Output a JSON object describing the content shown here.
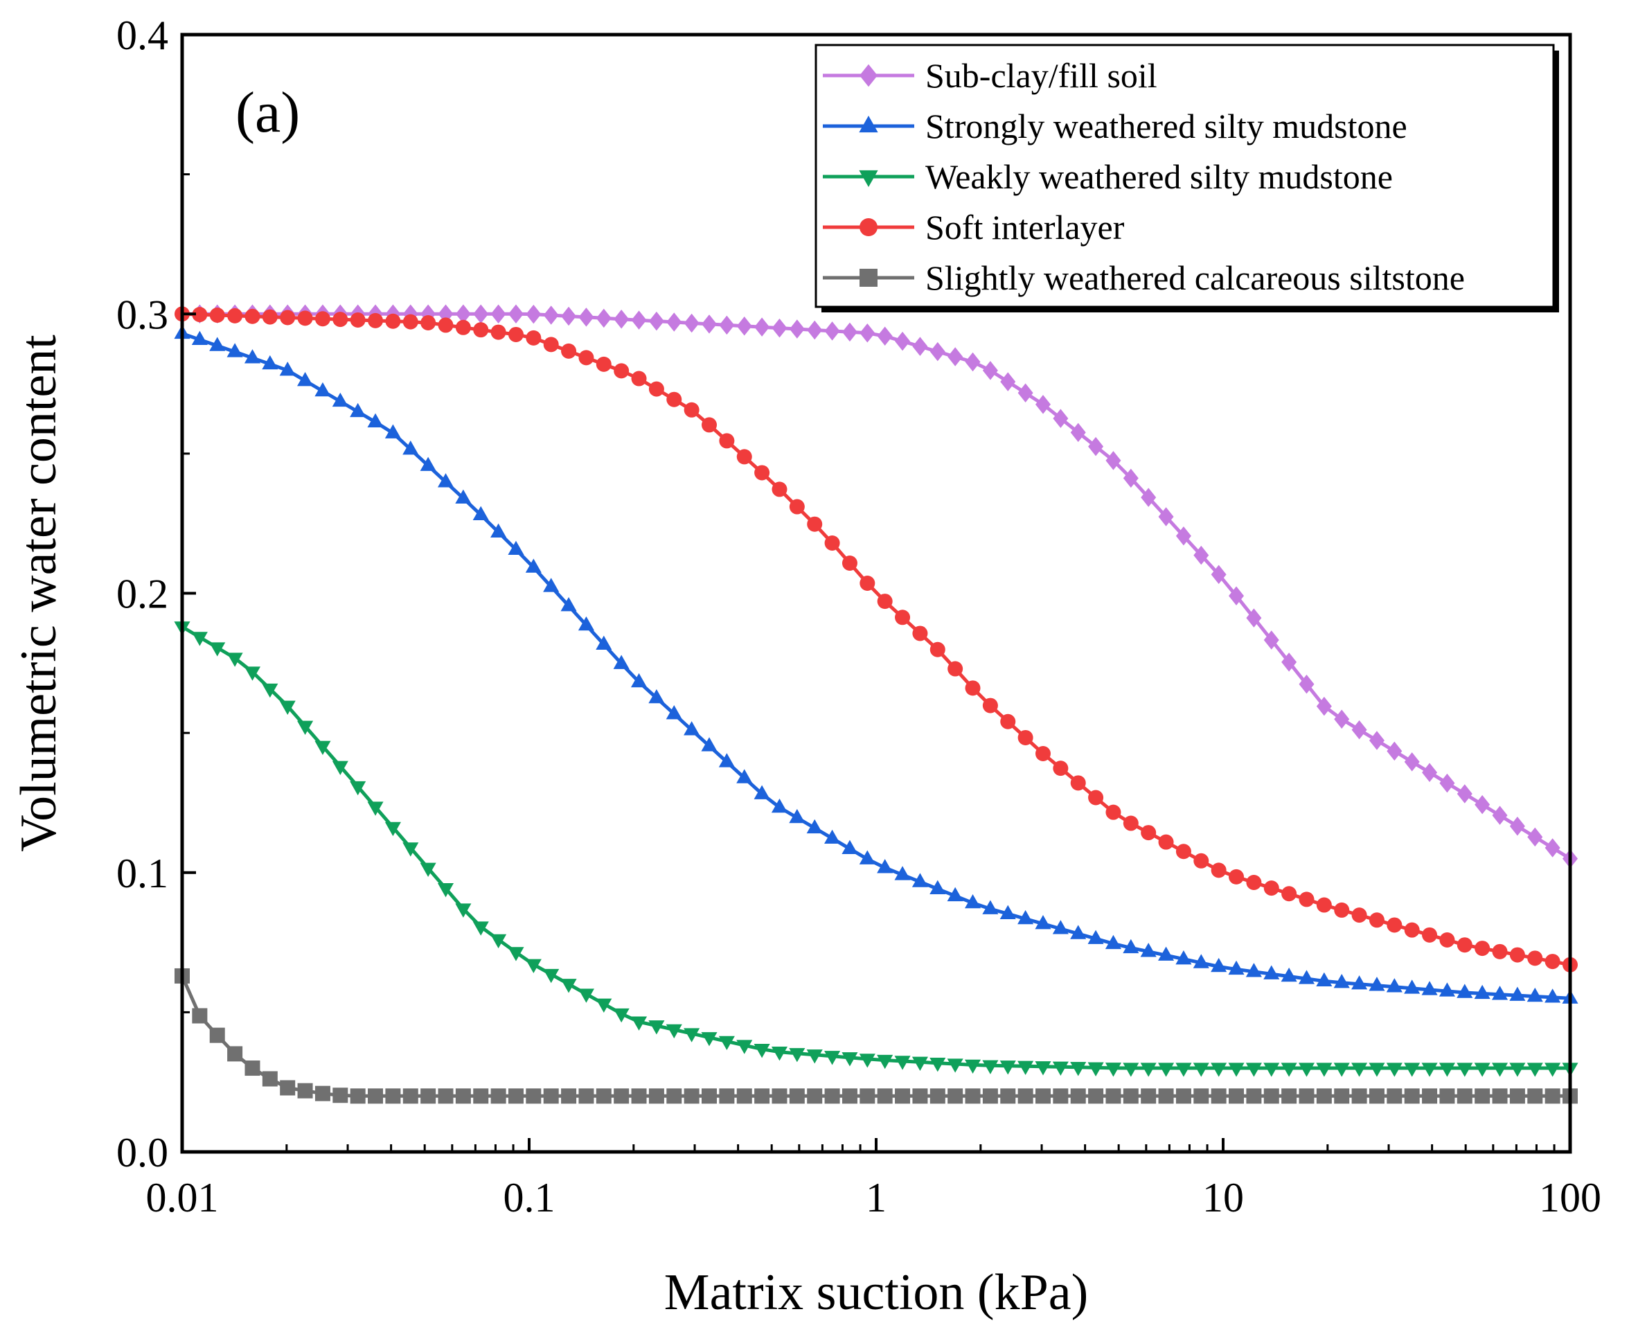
{
  "chart_data": {
    "type": "line",
    "panel_label": "(a)",
    "xlabel": "Matrix suction (kPa)",
    "ylabel": "Volumetric water content",
    "xscale": "log",
    "xlim": [
      0.01,
      100
    ],
    "ylim": [
      0.0,
      0.4
    ],
    "x_ticks": [
      0.01,
      0.1,
      1,
      10,
      100
    ],
    "x_tick_labels": [
      "0.01",
      "0.1",
      "1",
      "10",
      "100"
    ],
    "y_ticks": [
      0.0,
      0.1,
      0.2,
      0.3,
      0.4
    ],
    "y_tick_labels": [
      "0.0",
      "0.1",
      "0.2",
      "0.3",
      "0.4"
    ],
    "legend_position": "top-right",
    "points_per_series": 80,
    "series": [
      {
        "name": "Sub-clay/fill soil",
        "color": "#c57ae0",
        "marker": "diamond",
        "x": [
          0.01,
          0.1,
          1,
          2,
          3,
          5,
          10,
          20,
          50,
          100
        ],
        "values": [
          0.3,
          0.3,
          0.293,
          0.282,
          0.268,
          0.246,
          0.205,
          0.158,
          0.128,
          0.105
        ]
      },
      {
        "name": "Strongly weathered silty mudstone",
        "color": "#1c62db",
        "marker": "triangle-up",
        "x": [
          0.01,
          0.02,
          0.04,
          0.07,
          0.1,
          0.2,
          0.5,
          1,
          2,
          5,
          10,
          20,
          50,
          100
        ],
        "values": [
          0.293,
          0.28,
          0.258,
          0.23,
          0.211,
          0.17,
          0.125,
          0.103,
          0.088,
          0.074,
          0.066,
          0.061,
          0.057,
          0.055
        ]
      },
      {
        "name": "Weakly weathered silty mudstone",
        "color": "#0fa05a",
        "marker": "triangle-down",
        "x": [
          0.01,
          0.015,
          0.02,
          0.03,
          0.05,
          0.07,
          0.1,
          0.2,
          0.5,
          1,
          2,
          5,
          10,
          100
        ],
        "values": [
          0.188,
          0.175,
          0.16,
          0.135,
          0.103,
          0.082,
          0.068,
          0.047,
          0.036,
          0.033,
          0.031,
          0.03,
          0.03,
          0.03
        ]
      },
      {
        "name": "Soft interlayer",
        "color": "#f03c3c",
        "marker": "circle",
        "x": [
          0.01,
          0.05,
          0.1,
          0.2,
          0.3,
          0.5,
          0.7,
          1,
          1.5,
          2,
          3,
          5,
          10,
          20,
          50,
          100
        ],
        "values": [
          0.3,
          0.297,
          0.292,
          0.278,
          0.265,
          0.24,
          0.222,
          0.2,
          0.18,
          0.163,
          0.143,
          0.12,
          0.1,
          0.088,
          0.074,
          0.067
        ]
      },
      {
        "name": "Slightly weathered calcareous siltstone",
        "color": "#707070",
        "marker": "square",
        "x": [
          0.01,
          0.011,
          0.013,
          0.015,
          0.018,
          0.02,
          0.025,
          0.03,
          0.05,
          100
        ],
        "values": [
          0.063,
          0.05,
          0.04,
          0.032,
          0.026,
          0.023,
          0.021,
          0.02,
          0.02,
          0.02
        ]
      }
    ]
  }
}
